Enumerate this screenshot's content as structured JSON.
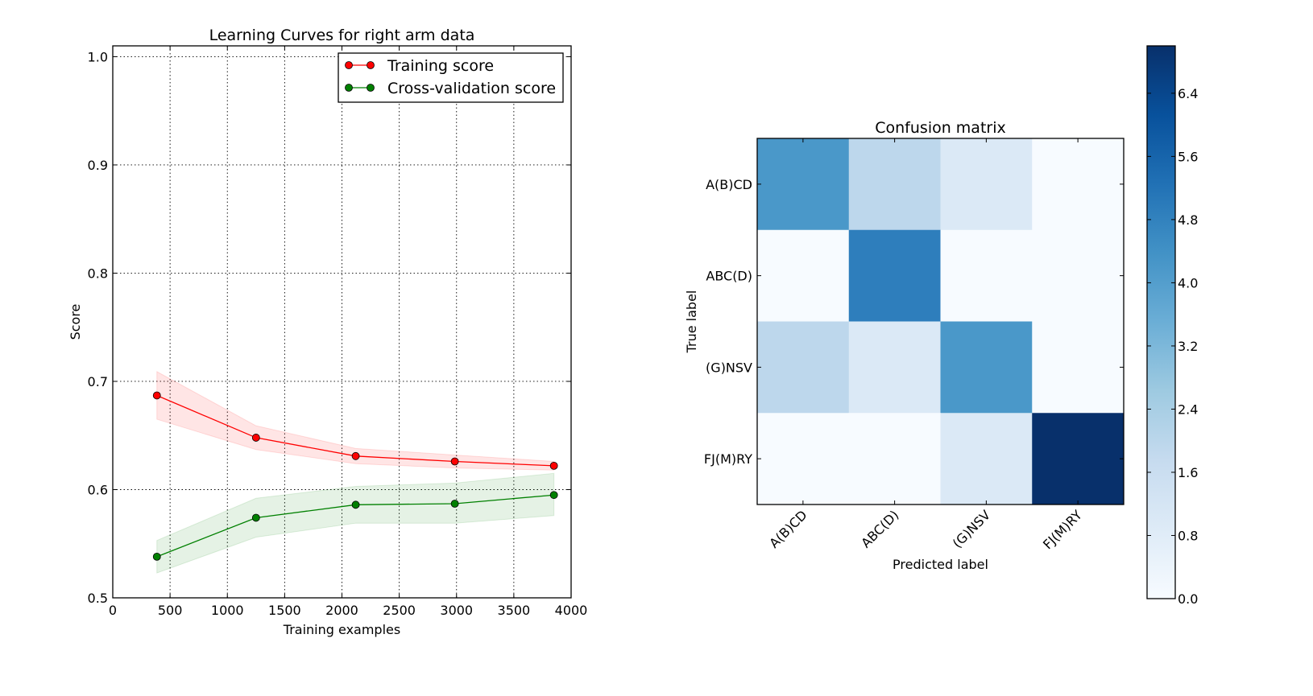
{
  "chart_data": [
    {
      "type": "line",
      "title": "Learning Curves for right arm data",
      "xlabel": "Training examples",
      "ylabel": "Score",
      "xlim": [
        0,
        4000
      ],
      "ylim": [
        0.5,
        1.01
      ],
      "xticks": [
        0,
        500,
        1000,
        1500,
        2000,
        2500,
        3000,
        3500,
        4000
      ],
      "xtick_labels": [
        "0",
        "500",
        "1000",
        "1500",
        "2000",
        "2500",
        "3000",
        "3500",
        "4000"
      ],
      "yticks": [
        0.5,
        0.6,
        0.7,
        0.8,
        0.9,
        1.0
      ],
      "ytick_labels": [
        "0.5",
        "0.6",
        "0.7",
        "0.8",
        "0.9",
        "1.0"
      ],
      "grid": true,
      "legend_position": "top-right",
      "x": [
        385,
        1250,
        2120,
        2985,
        3850
      ],
      "series": [
        {
          "name": "Training score",
          "color": "#ff0000",
          "values": [
            0.687,
            0.648,
            0.631,
            0.626,
            0.622
          ],
          "band_low": [
            0.665,
            0.637,
            0.624,
            0.62,
            0.618
          ],
          "band_high": [
            0.709,
            0.659,
            0.638,
            0.632,
            0.626
          ]
        },
        {
          "name": "Cross-validation score",
          "color": "#008000",
          "values": [
            0.538,
            0.574,
            0.586,
            0.587,
            0.595
          ],
          "band_low": [
            0.523,
            0.556,
            0.569,
            0.569,
            0.576
          ],
          "band_high": [
            0.553,
            0.592,
            0.603,
            0.606,
            0.615
          ]
        }
      ]
    },
    {
      "type": "heatmap",
      "title": "Confusion matrix",
      "xlabel": "Predicted label",
      "ylabel": "True label",
      "colormap": "Blues",
      "rows": [
        "A(B)CD",
        "ABC(D)",
        "(G)NSV",
        "FJ(M)RY"
      ],
      "columns": [
        "A(B)CD",
        "ABC(D)",
        "(G)NSV",
        "FJ(M)RY"
      ],
      "matrix": [
        [
          4,
          2,
          1,
          0
        ],
        [
          0,
          5,
          0,
          0
        ],
        [
          2,
          1,
          4,
          0
        ],
        [
          0,
          0,
          1,
          7
        ]
      ],
      "vmin": 0,
      "vmax": 7,
      "colorbar_ticks": [
        0.0,
        0.8,
        1.6,
        2.4,
        3.2,
        4.0,
        4.8,
        5.6,
        6.4
      ],
      "colorbar_tick_labels": [
        "0.0",
        "0.8",
        "1.6",
        "2.4",
        "3.2",
        "4.0",
        "4.8",
        "5.6",
        "6.4"
      ],
      "colors": {
        "0": "#f7fbff",
        "1": "#dbe9f6",
        "2": "#bdd7ec",
        "4": "#4a98c9",
        "5": "#2e7ebc",
        "7": "#08306b"
      }
    }
  ]
}
